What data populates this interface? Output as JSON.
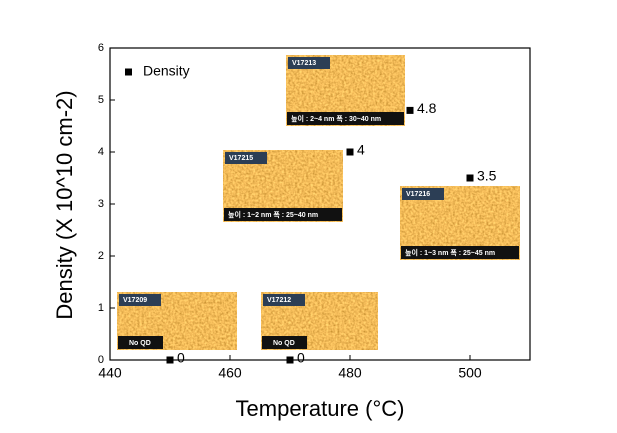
{
  "chart_data": {
    "type": "scatter",
    "x_label": "Temperature (°C)",
    "y_label": "Density (X 10^10 cm-2)",
    "x": [
      450,
      470,
      480,
      490,
      500
    ],
    "series": [
      {
        "name": "Density",
        "color": "#000000",
        "values": [
          0,
          0,
          4,
          4.8,
          3.5
        ]
      }
    ],
    "xlim": [
      440,
      510
    ],
    "xticks": [
      440,
      460,
      480,
      500
    ],
    "ylim": [
      0,
      6
    ],
    "yticks": [
      0,
      1,
      2,
      3,
      4,
      5,
      6
    ],
    "legend": "upper-left",
    "annotations": [
      {
        "sample": "V17209",
        "caption": "No QD"
      },
      {
        "sample": "V17212",
        "caption": "No QD"
      },
      {
        "sample": "V17215",
        "caption": "높이 : 1~2 nm    폭 : 25~40 nm"
      },
      {
        "sample": "V17213",
        "caption": "높이 : 2~4 nm    폭 : 30~40 nm"
      },
      {
        "sample": "V17216",
        "caption": "높이 : 1~3 nm    폭 : 25~45 nm"
      }
    ]
  }
}
